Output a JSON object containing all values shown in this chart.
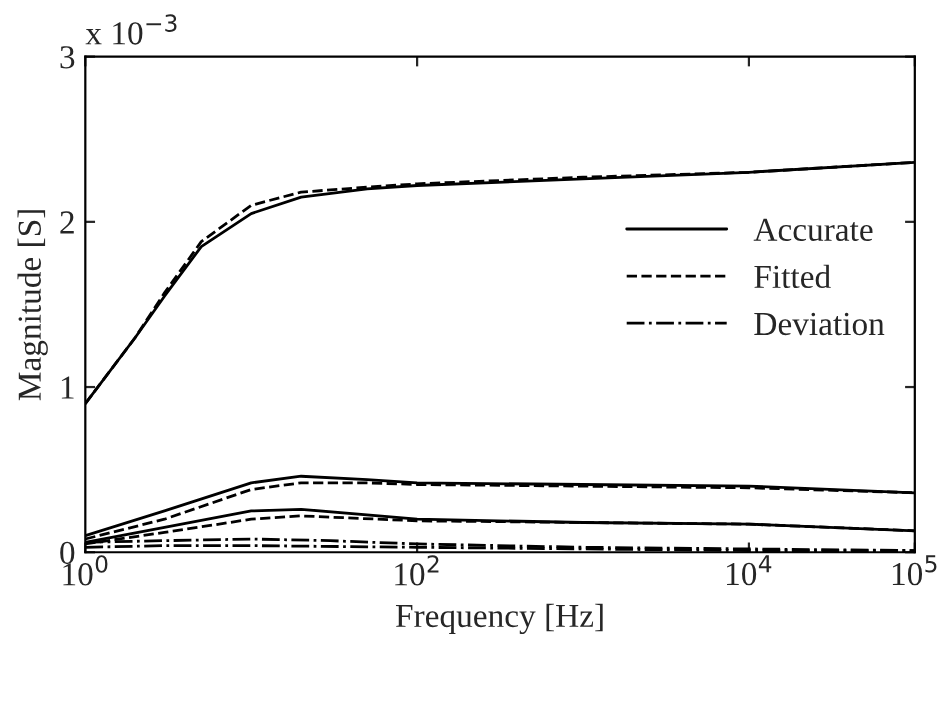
{
  "chart_data": {
    "type": "line",
    "xlabel": "Frequency [Hz]",
    "ylabel": "Magnitude [S]",
    "log": "x",
    "grid": false,
    "legend": "right",
    "marker": "none",
    "annotations": [
      "x 10$^{−3}$"
    ],
    "xlim": [
      1,
      100000
    ],
    "xticks": [
      {
        "value": 1,
        "label": "10$^{0}$"
      },
      {
        "value": 100,
        "label": "10$^{2}$"
      },
      {
        "value": 10000,
        "label": "10$^{4}$"
      },
      {
        "value": 100000,
        "label": "10$^{5}$"
      }
    ],
    "ylim": [
      0,
      3
    ],
    "yticks": [
      0,
      1,
      2,
      3
    ],
    "series": [
      {
        "name": "Accurate",
        "color": "#000000",
        "line_style": "solid",
        "x": [
          1,
          2,
          3,
          5,
          10,
          20,
          50,
          100,
          1000,
          10000,
          100000
        ],
        "values": [
          0.9,
          1.3,
          1.55,
          1.85,
          2.05,
          2.15,
          2.2,
          2.22,
          2.26,
          2.3,
          2.36
        ]
      },
      {
        "name": "Fitted",
        "color": "#000000",
        "line_style": "dashed",
        "x": [
          1,
          2,
          3,
          5,
          10,
          20,
          50,
          100,
          1000,
          10000,
          100000
        ],
        "values": [
          0.9,
          1.3,
          1.57,
          1.88,
          2.1,
          2.18,
          2.21,
          2.23,
          2.27,
          2.3,
          2.36
        ]
      },
      {
        "name": "Deviation",
        "color": "#000000",
        "line_style": "dashdot",
        "x": [
          1,
          3,
          10,
          30,
          100,
          1000,
          10000,
          100000
        ],
        "values": [
          0.06,
          0.07,
          0.08,
          0.07,
          0.05,
          0.03,
          0.02,
          0.01
        ]
      },
      {
        "color": "#000000",
        "line_style": "solid",
        "x": [
          1,
          3,
          10,
          20,
          50,
          100,
          1000,
          10000,
          100000
        ],
        "values": [
          0.1,
          0.25,
          0.42,
          0.46,
          0.44,
          0.42,
          0.41,
          0.4,
          0.36
        ]
      },
      {
        "color": "#000000",
        "line_style": "dashed",
        "x": [
          1,
          3,
          10,
          20,
          50,
          100,
          1000,
          10000,
          100000
        ],
        "values": [
          0.08,
          0.2,
          0.38,
          0.42,
          0.42,
          0.41,
          0.4,
          0.39,
          0.36
        ]
      },
      {
        "color": "#000000",
        "line_style": "solid",
        "x": [
          1,
          3,
          10,
          20,
          100,
          1000,
          10000,
          100000
        ],
        "values": [
          0.06,
          0.15,
          0.25,
          0.26,
          0.2,
          0.18,
          0.17,
          0.13
        ]
      },
      {
        "color": "#000000",
        "line_style": "dashed",
        "x": [
          1,
          3,
          10,
          20,
          100,
          1000,
          10000,
          100000
        ],
        "values": [
          0.05,
          0.12,
          0.2,
          0.22,
          0.19,
          0.18,
          0.17,
          0.13
        ]
      },
      {
        "color": "#000000",
        "line_style": "dashdot",
        "x": [
          1,
          3,
          10,
          100,
          1000,
          10000,
          100000
        ],
        "values": [
          0.03,
          0.04,
          0.04,
          0.03,
          0.02,
          0.01,
          0.01
        ]
      }
    ]
  }
}
